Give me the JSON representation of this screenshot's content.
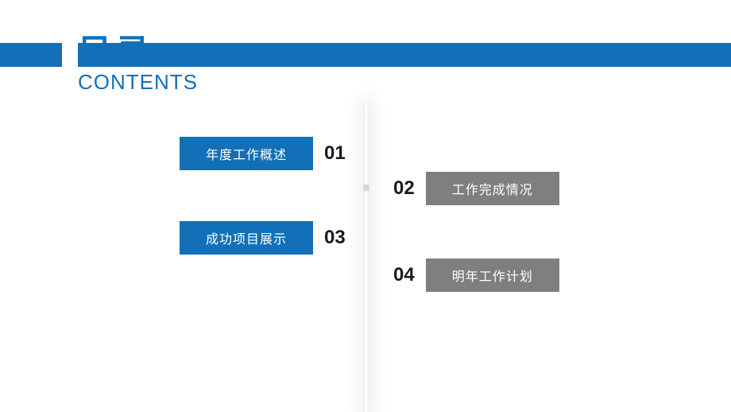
{
  "colors": {
    "accent": "#1170b8",
    "box_blue": "#1170b8",
    "box_gray": "#7f7f7f",
    "text_white": "#ffffff",
    "num_color": "#1a1a1a"
  },
  "title": {
    "cn": "目录",
    "en": "CONTENTS"
  },
  "items": [
    {
      "num": "01",
      "label": "年度工作概述",
      "color": "#1170b8"
    },
    {
      "num": "02",
      "label": "工作完成情况",
      "color": "#7f7f7f"
    },
    {
      "num": "03",
      "label": "成功项目展示",
      "color": "#1170b8"
    },
    {
      "num": "04",
      "label": "明年工作计划",
      "color": "#7f7f7f"
    }
  ]
}
